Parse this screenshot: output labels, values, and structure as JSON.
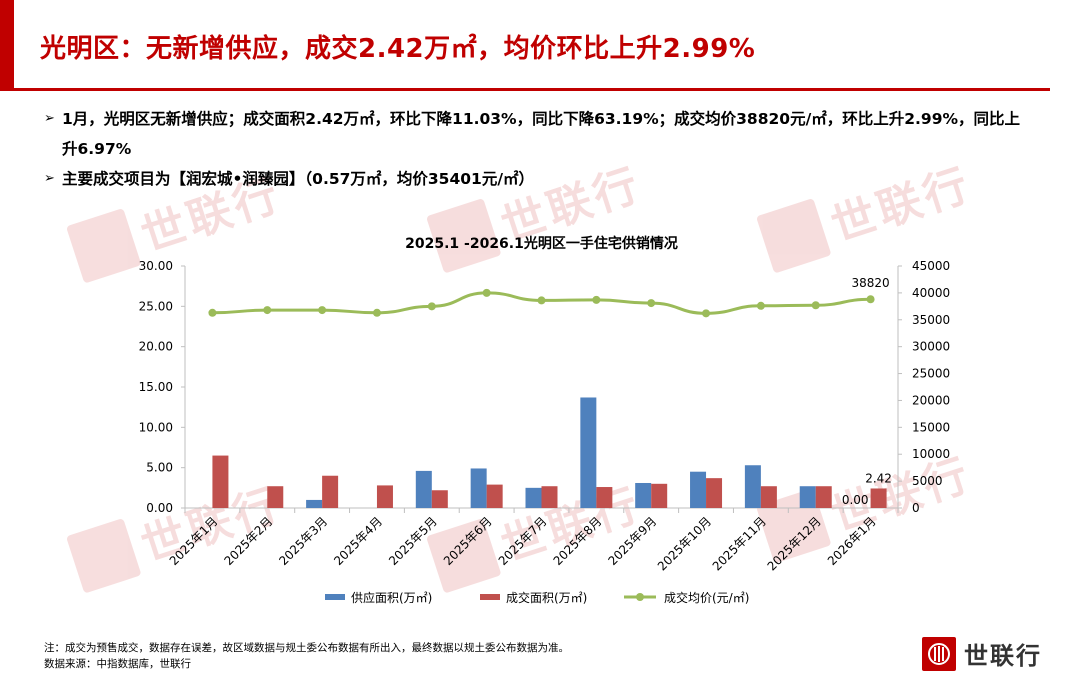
{
  "colors": {
    "accent": "#c00000",
    "supply": "#4f81bd",
    "deal_area": "#c0504d",
    "price": "#9bbb59"
  },
  "header": {
    "title": "光明区：无新增供应，成交2.42万㎡，均价环比上升2.99%"
  },
  "bullets": [
    {
      "text": "1月，光明区无新增供应；成交面积2.42万㎡，环比下降11.03%，同比下降63.19%；成交均价38820元/㎡，环比上升2.99%，同比上升6.97%"
    },
    {
      "text": "主要成交项目为【润宏城•润臻园】（0.57万㎡，均价35401元/㎡）"
    }
  ],
  "footer": {
    "note": "注：成交为预售成交，数据存在误差，故区域数据与规土委公布数据有所出入，最终数据以规土委公布数据为准。",
    "source": "数据来源：中指数据库，世联行"
  },
  "logo": {
    "text": "世联行",
    "icon": "shilianhang-logo-icon"
  },
  "watermark": {
    "text": "世联行"
  },
  "chart_data": {
    "type": "bar",
    "title": "2025.1 -2026.1光明区一手住宅供销情况",
    "categories": [
      "2025年1月",
      "2025年2月",
      "2025年3月",
      "2025年4月",
      "2025年5月",
      "2025年6月",
      "2025年7月",
      "2025年8月",
      "2025年9月",
      "2025年10月",
      "2025年11月",
      "2025年12月",
      "2026年1月"
    ],
    "series": [
      {
        "name": "供应面积(万㎡)",
        "type": "bar",
        "axis": "left",
        "values": [
          0,
          0,
          1.0,
          0,
          4.6,
          4.9,
          2.5,
          13.7,
          3.1,
          4.5,
          5.3,
          2.7,
          0.0
        ]
      },
      {
        "name": "成交面积(万㎡)",
        "type": "bar",
        "axis": "left",
        "values": [
          6.5,
          2.7,
          4.0,
          2.8,
          2.2,
          2.9,
          2.7,
          2.6,
          3.0,
          3.7,
          2.7,
          2.7,
          2.42
        ]
      },
      {
        "name": "成交均价(元/㎡)",
        "type": "line",
        "axis": "right",
        "values": [
          36300,
          36800,
          36800,
          36300,
          37500,
          40000,
          38600,
          38700,
          38100,
          36200,
          37600,
          37700,
          38820
        ]
      }
    ],
    "left_axis": {
      "min": 0,
      "max": 30,
      "ticks": [
        "0.00",
        "5.00",
        "10.00",
        "15.00",
        "20.00",
        "25.00",
        "30.00"
      ]
    },
    "right_axis": {
      "min": 0,
      "max": 45000,
      "ticks": [
        "0",
        "5000",
        "10000",
        "15000",
        "20000",
        "25000",
        "30000",
        "35000",
        "40000",
        "45000"
      ]
    },
    "data_labels": [
      {
        "series": 0,
        "index": 12,
        "text": "0.00"
      },
      {
        "series": 1,
        "index": 12,
        "text": "2.42"
      },
      {
        "series": 2,
        "index": 12,
        "text": "38820"
      }
    ],
    "legend": "bottom",
    "grid": false
  }
}
